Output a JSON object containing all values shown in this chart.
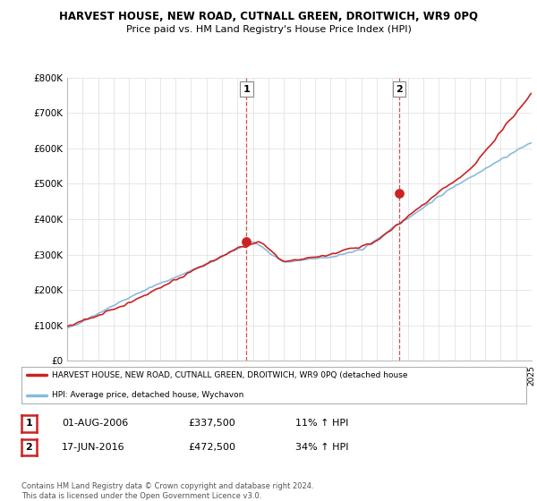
{
  "title": "HARVEST HOUSE, NEW ROAD, CUTNALL GREEN, DROITWICH, WR9 0PQ",
  "subtitle": "Price paid vs. HM Land Registry's House Price Index (HPI)",
  "ylabel_ticks": [
    "£0",
    "£100K",
    "£200K",
    "£300K",
    "£400K",
    "£500K",
    "£600K",
    "£700K",
    "£800K"
  ],
  "ylim": [
    0,
    800000
  ],
  "xlim_start": 1995,
  "xlim_end": 2025,
  "sale1_date": 2006.58,
  "sale1_price": 337500,
  "sale2_date": 2016.46,
  "sale2_price": 472500,
  "hpi_line_color": "#88bbdd",
  "price_line_color": "#cc2222",
  "sale_dot_color": "#cc2222",
  "legend_text_red": "HARVEST HOUSE, NEW ROAD, CUTNALL GREEN, DROITWICH, WR9 0PQ (detached house",
  "legend_text_blue": "HPI: Average price, detached house, Wychavon",
  "table_row1_num": "1",
  "table_row1_date": "01-AUG-2006",
  "table_row1_price": "£337,500",
  "table_row1_hpi": "11% ↑ HPI",
  "table_row2_num": "2",
  "table_row2_date": "17-JUN-2016",
  "table_row2_price": "£472,500",
  "table_row2_hpi": "34% ↑ HPI",
  "footer": "Contains HM Land Registry data © Crown copyright and database right 2024.\nThis data is licensed under the Open Government Licence v3.0.",
  "bg_color": "#ffffff",
  "grid_color": "#dddddd",
  "dashed_line_color": "#cc3333"
}
